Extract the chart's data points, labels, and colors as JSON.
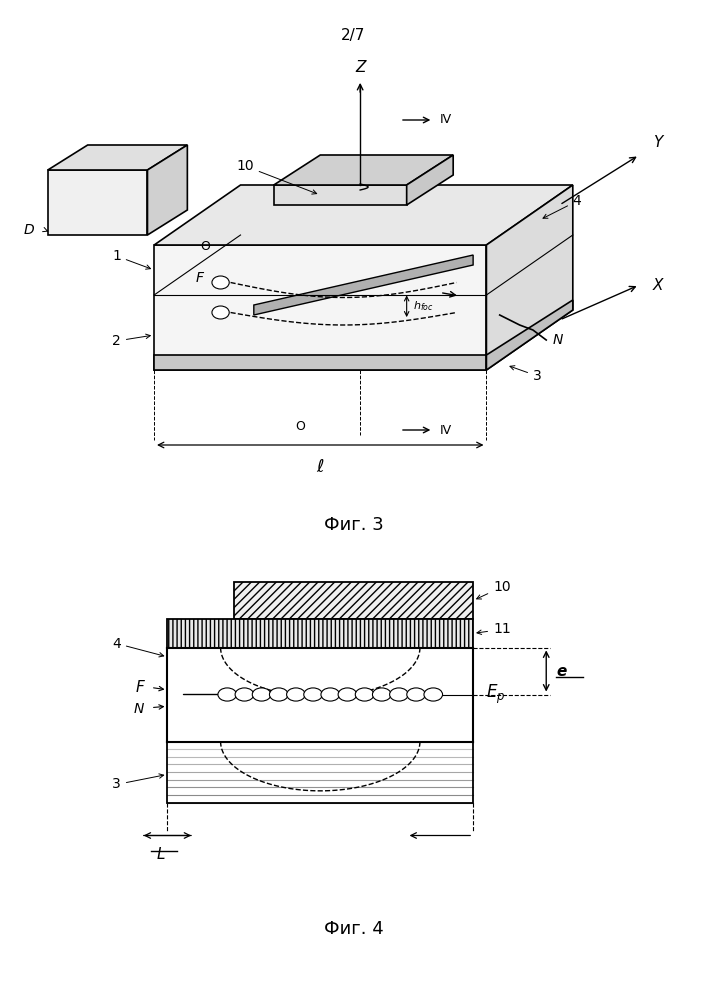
{
  "page_label": "2/7",
  "fig3_label": "Фиг. 3",
  "fig4_label": "Фиг. 4",
  "bg_color": "#ffffff",
  "line_color": "#000000"
}
